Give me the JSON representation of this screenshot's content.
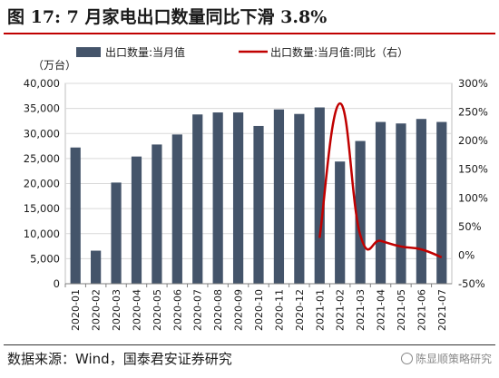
{
  "title": "图 17:  7 月家电出口数量同比下滑 3.8%",
  "source": "数据来源：Wind，国泰君安证券研究",
  "watermark": "陈显顺策略研究",
  "colors": {
    "bar": "#44546a",
    "line": "#c00000",
    "accent_rule": "#c00000"
  },
  "chart_data": {
    "type": "bar",
    "title": "",
    "unit_label": "（万台）",
    "categories": [
      "2020-01",
      "2020-02",
      "2020-03",
      "2020-04",
      "2020-05",
      "2020-06",
      "2020-07",
      "2020-08",
      "2020-09",
      "2020-10",
      "2020-11",
      "2020-12",
      "2021-01",
      "2021-02",
      "2021-03",
      "2021-04",
      "2021-05",
      "2021-06",
      "2021-07"
    ],
    "series": [
      {
        "name": "出口数量:当月值",
        "type": "bar",
        "axis": "left",
        "values": [
          27200,
          6600,
          20200,
          25400,
          27800,
          29800,
          33800,
          34200,
          34200,
          31500,
          34800,
          33900,
          35200,
          24400,
          28500,
          32300,
          32000,
          32900,
          32300
        ]
      },
      {
        "name": "出口数量:当月值:同比（右）",
        "type": "line",
        "axis": "right",
        "x": [
          "2021-01",
          "2021-02",
          "2021-03",
          "2021-04",
          "2021-05",
          "2021-06",
          "2021-07"
        ],
        "values": [
          30,
          265,
          35,
          25,
          15,
          10,
          -3.8
        ]
      }
    ],
    "y_left": {
      "min": 0,
      "max": 40000,
      "step": 5000,
      "tick_labels": [
        "0",
        "5,000",
        "10,000",
        "15,000",
        "20,000",
        "25,000",
        "30,000",
        "35,000",
        "40,000"
      ]
    },
    "y_right": {
      "min": -50,
      "max": 300,
      "step": 50,
      "tick_labels": [
        "-50%",
        "0%",
        "50%",
        "100%",
        "150%",
        "200%",
        "250%",
        "300%"
      ]
    },
    "grid": "horizontal",
    "legend_position": "top"
  }
}
